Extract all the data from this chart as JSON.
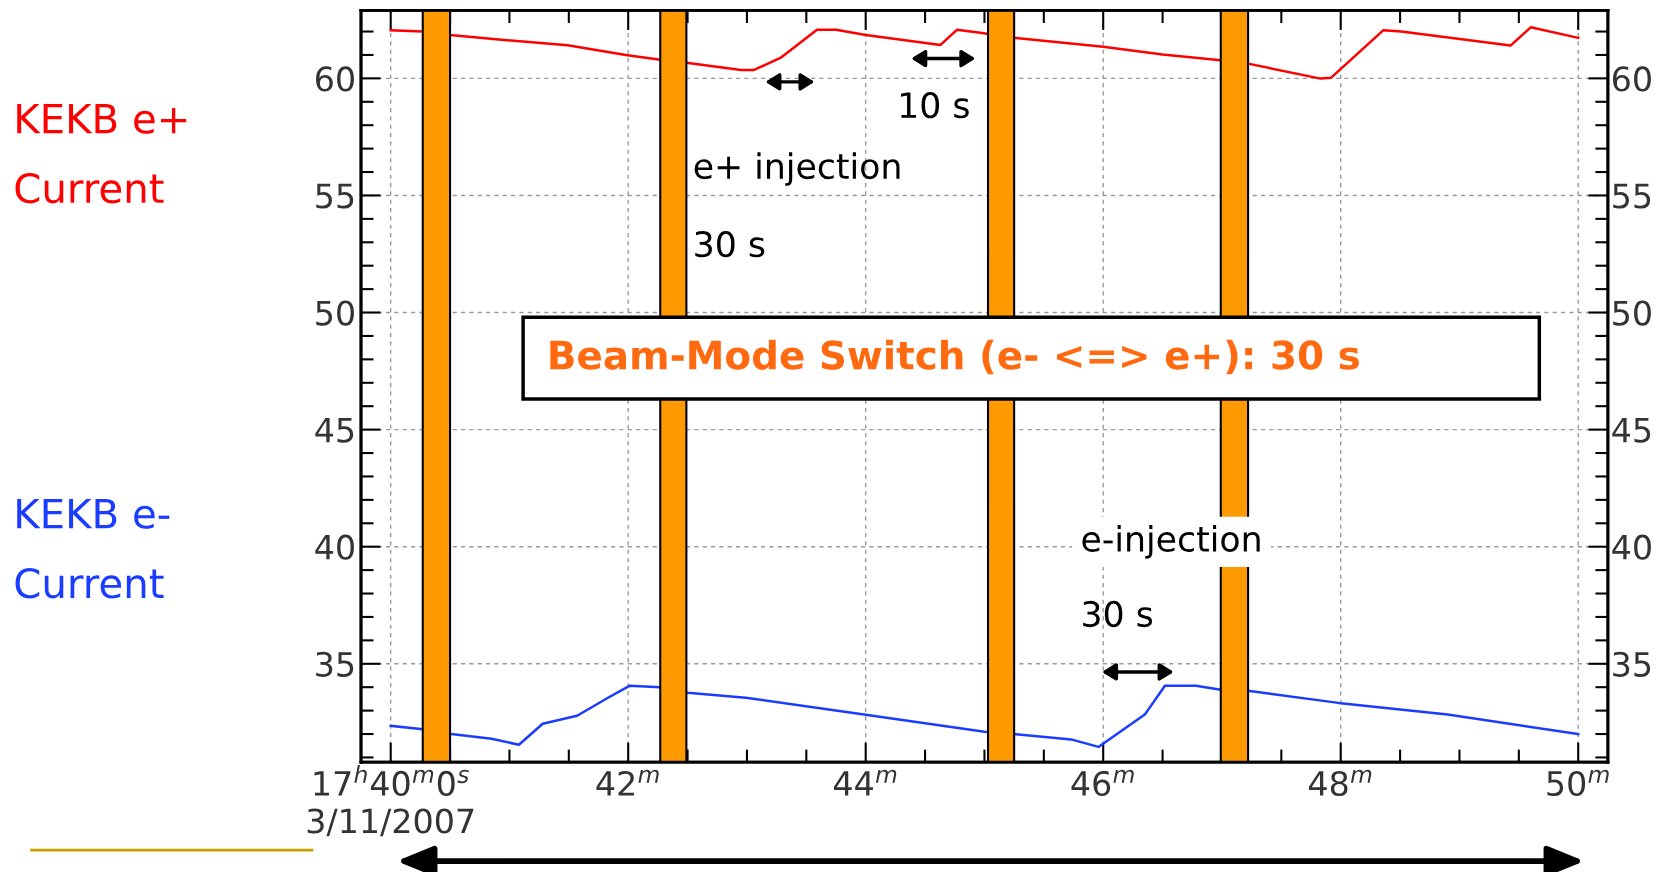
{
  "chart_data": {
    "type": "line",
    "series": [
      {
        "name": "KEKB e+\nCurrent",
        "color": "#ff0000",
        "x": [
          40.0,
          40.27,
          40.5,
          40.91,
          41.49,
          41.98,
          42.27,
          42.49,
          42.95,
          43.06,
          43.29,
          43.59,
          43.75,
          44.0,
          44.63,
          44.77,
          44.98,
          45.25,
          46.0,
          46.5,
          46.99,
          47.22,
          47.83,
          47.92,
          48.36,
          48.51,
          49.43,
          49.6,
          50.0
        ],
        "values": [
          62.05,
          62.0,
          61.85,
          61.66,
          61.41,
          61.0,
          60.8,
          60.67,
          60.36,
          60.36,
          60.9,
          62.08,
          62.08,
          61.85,
          61.43,
          62.08,
          61.94,
          61.73,
          61.35,
          61.02,
          60.77,
          60.63,
          59.99,
          60.03,
          62.06,
          62.0,
          61.4,
          62.18,
          61.73
        ]
      },
      {
        "name": "KEKB e-\nCurrent",
        "color": "#1a3cff",
        "x": [
          40.0,
          40.27,
          40.51,
          40.85,
          41.08,
          41.28,
          41.57,
          41.83,
          42.01,
          42.27,
          42.5,
          42.99,
          44.0,
          45.0,
          45.25,
          45.73,
          45.96,
          46.35,
          46.52,
          46.78,
          46.99,
          47.22,
          47.98,
          48.9,
          50.0
        ],
        "values": [
          32.35,
          32.2,
          32.0,
          31.8,
          31.54,
          32.44,
          32.78,
          33.55,
          34.06,
          34.0,
          33.76,
          33.55,
          32.82,
          32.1,
          32.0,
          31.77,
          31.45,
          32.83,
          34.06,
          34.06,
          33.89,
          33.85,
          33.33,
          32.83,
          32.0
        ]
      }
    ],
    "xlim": [
      39.75,
      50.25
    ],
    "xticks": [
      {
        "value": 40,
        "label": "17$^{h}$40$^{m}$0$^{s}$\n3/11/2007"
      },
      {
        "value": 40.5,
        "label": null
      },
      {
        "value": 41,
        "label": null
      },
      {
        "value": 41.5,
        "label": null
      },
      {
        "value": 42,
        "label": "42$^{m}$"
      },
      {
        "value": 42.5,
        "label": null
      },
      {
        "value": 43,
        "label": null
      },
      {
        "value": 43.5,
        "label": null
      },
      {
        "value": 44,
        "label": "44$^{m}$"
      },
      {
        "value": 44.5,
        "label": null
      },
      {
        "value": 45,
        "label": null
      },
      {
        "value": 45.5,
        "label": null
      },
      {
        "value": 46,
        "label": "46$^{m}$"
      },
      {
        "value": 46.5,
        "label": null
      },
      {
        "value": 47,
        "label": null
      },
      {
        "value": 47.5,
        "label": null
      },
      {
        "value": 48,
        "label": "48$^{m}$"
      },
      {
        "value": 48.5,
        "label": null
      },
      {
        "value": 49,
        "label": null
      },
      {
        "value": 49.5,
        "label": null
      },
      {
        "value": 50,
        "label": "50$^{m}$"
      }
    ],
    "ylim": [
      30.8,
      62.9
    ],
    "yticks": [
      {
        "value": 31,
        "label": null
      },
      {
        "value": 32,
        "label": null
      },
      {
        "value": 33,
        "label": null
      },
      {
        "value": 34,
        "label": null
      },
      35,
      {
        "value": 36,
        "label": null
      },
      {
        "value": 37,
        "label": null
      },
      {
        "value": 38,
        "label": null
      },
      {
        "value": 39,
        "label": null
      },
      40,
      {
        "value": 41,
        "label": null
      },
      {
        "value": 42,
        "label": null
      },
      {
        "value": 43,
        "label": null
      },
      {
        "value": 44,
        "label": null
      },
      45,
      {
        "value": 46,
        "label": null
      },
      {
        "value": 47,
        "label": null
      },
      {
        "value": 48,
        "label": null
      },
      {
        "value": 49,
        "label": null
      },
      50,
      {
        "value": 51,
        "label": null
      },
      {
        "value": 52,
        "label": null
      },
      {
        "value": 53,
        "label": null
      },
      {
        "value": 54,
        "label": null
      },
      55,
      {
        "value": 56,
        "label": null
      },
      {
        "value": 57,
        "label": null
      },
      {
        "value": 58,
        "label": null
      },
      {
        "value": 59,
        "label": null
      },
      60,
      {
        "value": 61,
        "label": null
      },
      {
        "value": 62,
        "label": null
      }
    ],
    "y2lim": [
      30.8,
      62.9
    ],
    "y2ticks": [
      {
        "value": 31,
        "label": null
      },
      {
        "value": 32,
        "label": null
      },
      {
        "value": 33,
        "label": null
      },
      {
        "value": 34,
        "label": null
      },
      35,
      {
        "value": 36,
        "label": null
      },
      {
        "value": 37,
        "label": null
      },
      {
        "value": 38,
        "label": null
      },
      {
        "value": 39,
        "label": null
      },
      40,
      {
        "value": 41,
        "label": null
      },
      {
        "value": 42,
        "label": null
      },
      {
        "value": 43,
        "label": null
      },
      {
        "value": 44,
        "label": null
      },
      45,
      {
        "value": 46,
        "label": null
      },
      {
        "value": 47,
        "label": null
      },
      {
        "value": 48,
        "label": null
      },
      {
        "value": 49,
        "label": null
      },
      50,
      {
        "value": 51,
        "label": null
      },
      {
        "value": 52,
        "label": null
      },
      {
        "value": 53,
        "label": null
      },
      {
        "value": 54,
        "label": null
      },
      55,
      {
        "value": 56,
        "label": null
      },
      {
        "value": 57,
        "label": null
      },
      {
        "value": 58,
        "label": null
      },
      {
        "value": 59,
        "label": null
      },
      60,
      {
        "value": 61,
        "label": null
      },
      {
        "value": 62,
        "label": null
      }
    ],
    "bands": [
      {
        "axis": "x",
        "from": 40.27,
        "to": 40.5,
        "color": "#ff9900"
      },
      {
        "axis": "x",
        "from": 42.27,
        "to": 42.49,
        "color": "#ff9900"
      },
      {
        "axis": "x",
        "from": 45.03,
        "to": 45.25,
        "color": "#ff9900"
      },
      {
        "axis": "x",
        "from": 46.99,
        "to": 47.22,
        "color": "#ff9900"
      }
    ],
    "annotations": [
      "e+ injection",
      "30 s",
      "10 s",
      "Beam-Mode Switch (e- <=> e+): 30 s",
      "e-injection",
      "30 s"
    ],
    "grid": true,
    "line_style": "solid",
    "marker": "none"
  }
}
